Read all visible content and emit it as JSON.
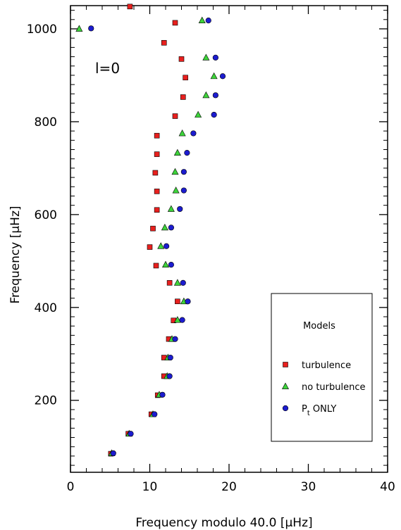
{
  "chart_data": {
    "type": "scatter",
    "title": "",
    "xlabel": "Frequency modulo 40.0 [μHz]",
    "ylabel": "Frequency [μHz]",
    "xlim": [
      0,
      40
    ],
    "ylim": [
      45,
      1050
    ],
    "x_ticks": [
      0,
      10,
      20,
      30,
      40
    ],
    "y_ticks": [
      200,
      400,
      600,
      800,
      1000
    ],
    "grid": false,
    "annotation": "l=0",
    "legend": {
      "title": "Models",
      "placement": "lower-right",
      "entries": [
        {
          "label": "turbulence",
          "marker": "square",
          "color": "#e8201e"
        },
        {
          "label": "no turbulence",
          "marker": "triangle",
          "color": "#3dd43a"
        },
        {
          "label_main": "P",
          "label_sub": "t",
          "label_rest": " ONLY",
          "marker": "circle",
          "color": "#1c1ccf"
        }
      ]
    },
    "series": [
      {
        "name": "turbulence",
        "marker": "square",
        "color": "#e8201e",
        "points": [
          [
            5.1,
            85
          ],
          [
            7.3,
            128
          ],
          [
            10.2,
            170
          ],
          [
            11.0,
            211
          ],
          [
            11.8,
            252
          ],
          [
            11.8,
            292
          ],
          [
            12.4,
            332
          ],
          [
            13.0,
            372
          ],
          [
            13.5,
            413
          ],
          [
            12.5,
            453
          ],
          [
            10.8,
            490
          ],
          [
            10.0,
            530
          ],
          [
            10.4,
            570
          ],
          [
            10.9,
            610
          ],
          [
            10.9,
            650
          ],
          [
            10.7,
            690
          ],
          [
            10.9,
            730
          ],
          [
            10.9,
            770
          ],
          [
            13.2,
            812
          ],
          [
            14.2,
            853
          ],
          [
            14.5,
            895
          ],
          [
            14.0,
            935
          ],
          [
            11.8,
            970
          ],
          [
            13.2,
            1013
          ],
          [
            7.5,
            1048
          ]
        ]
      },
      {
        "name": "no turbulence",
        "marker": "triangle",
        "color": "#3dd43a",
        "points": [
          [
            5.2,
            86
          ],
          [
            7.4,
            128
          ],
          [
            10.4,
            170
          ],
          [
            11.2,
            212
          ],
          [
            12.2,
            252
          ],
          [
            12.3,
            292
          ],
          [
            12.8,
            332
          ],
          [
            13.5,
            373
          ],
          [
            14.3,
            413
          ],
          [
            13.5,
            453
          ],
          [
            12.0,
            492
          ],
          [
            11.4,
            532
          ],
          [
            11.9,
            572
          ],
          [
            12.7,
            612
          ],
          [
            13.3,
            652
          ],
          [
            13.2,
            692
          ],
          [
            13.5,
            733
          ],
          [
            14.1,
            775
          ],
          [
            16.1,
            815
          ],
          [
            17.1,
            857
          ],
          [
            18.1,
            898
          ],
          [
            17.1,
            938
          ],
          [
            1.1,
            1000
          ],
          [
            16.6,
            1018
          ]
        ]
      },
      {
        "name": "P_t ONLY",
        "marker": "circle",
        "color": "#1c1ccf",
        "points": [
          [
            5.4,
            86
          ],
          [
            7.6,
            128
          ],
          [
            10.6,
            170
          ],
          [
            11.6,
            212
          ],
          [
            12.5,
            252
          ],
          [
            12.6,
            292
          ],
          [
            13.2,
            332
          ],
          [
            14.1,
            373
          ],
          [
            14.8,
            413
          ],
          [
            14.2,
            453
          ],
          [
            12.7,
            492
          ],
          [
            12.1,
            532
          ],
          [
            12.7,
            572
          ],
          [
            13.8,
            612
          ],
          [
            14.3,
            652
          ],
          [
            14.3,
            692
          ],
          [
            14.7,
            733
          ],
          [
            15.5,
            775
          ],
          [
            18.1,
            815
          ],
          [
            18.3,
            857
          ],
          [
            19.2,
            898
          ],
          [
            18.3,
            938
          ],
          [
            2.6,
            1001
          ],
          [
            17.4,
            1018
          ]
        ]
      }
    ]
  }
}
